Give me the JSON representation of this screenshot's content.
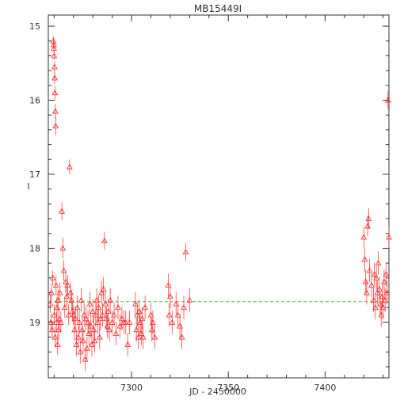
{
  "chart_data": {
    "type": "scatter",
    "title": "MB15449I",
    "xlabel": "JD - 2450000",
    "ylabel": "I",
    "xlim": [
      7257,
      7433
    ],
    "ylim": [
      19.75,
      14.85
    ],
    "y_inverted": true,
    "x_ticks": [
      7300,
      7350,
      7400
    ],
    "y_ticks": [
      15,
      16,
      17,
      18,
      19
    ],
    "marker": "triangle-open",
    "colors": {
      "points": "#ff2020",
      "errorbars": "#ff4040",
      "baseline": "#33cc33",
      "axes": "#333333"
    },
    "baseline": {
      "y": 18.72,
      "x_range": [
        7257,
        7433
      ],
      "style": "dashed"
    },
    "series": [
      {
        "points": [
          [
            7258.0,
            18.75,
            0.12
          ],
          [
            7258.3,
            19.0,
            0.12
          ],
          [
            7258.6,
            18.6,
            0.12
          ],
          [
            7259.0,
            19.1,
            0.12
          ],
          [
            7259.3,
            18.4,
            0.1
          ],
          [
            7259.6,
            15.2,
            0.06
          ],
          [
            7259.8,
            15.25,
            0.06
          ],
          [
            7259.9,
            15.3,
            0.06
          ],
          [
            7260.0,
            15.4,
            0.06
          ],
          [
            7260.2,
            15.55,
            0.07
          ],
          [
            7260.3,
            15.7,
            0.08
          ],
          [
            7260.4,
            15.9,
            0.09
          ],
          [
            7260.6,
            16.15,
            0.1
          ],
          [
            7260.8,
            16.35,
            0.12
          ],
          [
            7260.1,
            18.9,
            0.14
          ],
          [
            7260.5,
            19.2,
            0.14
          ],
          [
            7261.0,
            18.5,
            0.14
          ],
          [
            7261.2,
            19.0,
            0.14
          ],
          [
            7261.5,
            18.8,
            0.14
          ],
          [
            7261.8,
            19.3,
            0.14
          ],
          [
            7262.0,
            18.7,
            0.14
          ],
          [
            7262.3,
            19.1,
            0.14
          ],
          [
            7262.6,
            18.95,
            0.14
          ],
          [
            7263.0,
            18.6,
            0.14
          ],
          [
            7263.5,
            19.0,
            0.14
          ],
          [
            7264.0,
            17.5,
            0.12
          ],
          [
            7264.5,
            18.0,
            0.14
          ],
          [
            7265.0,
            18.3,
            0.14
          ],
          [
            7265.5,
            18.8,
            0.14
          ],
          [
            7266.0,
            18.45,
            0.14
          ],
          [
            7266.5,
            18.65,
            0.14
          ],
          [
            7267.0,
            18.5,
            0.14
          ],
          [
            7267.5,
            18.9,
            0.14
          ],
          [
            7268.0,
            16.9,
            0.1
          ],
          [
            7268.5,
            18.6,
            0.14
          ],
          [
            7269.0,
            18.7,
            0.14
          ],
          [
            7269.5,
            18.85,
            0.14
          ],
          [
            7270.0,
            18.9,
            0.14
          ],
          [
            7270.5,
            19.1,
            0.16
          ],
          [
            7271.0,
            18.95,
            0.16
          ],
          [
            7271.5,
            19.3,
            0.16
          ],
          [
            7272.0,
            18.8,
            0.16
          ],
          [
            7272.5,
            19.2,
            0.16
          ],
          [
            7273.0,
            19.0,
            0.16
          ],
          [
            7273.5,
            19.4,
            0.16
          ],
          [
            7274.0,
            18.7,
            0.16
          ],
          [
            7274.5,
            19.1,
            0.16
          ],
          [
            7275.0,
            19.25,
            0.16
          ],
          [
            7275.5,
            18.9,
            0.16
          ],
          [
            7276.0,
            19.5,
            0.16
          ],
          [
            7276.5,
            18.95,
            0.16
          ],
          [
            7277.0,
            19.35,
            0.16
          ],
          [
            7277.5,
            19.0,
            0.16
          ],
          [
            7278.0,
            19.15,
            0.16
          ],
          [
            7278.5,
            18.75,
            0.16
          ],
          [
            7279.0,
            19.05,
            0.16
          ],
          [
            7279.5,
            19.3,
            0.16
          ],
          [
            7280.0,
            18.85,
            0.16
          ],
          [
            7280.5,
            19.1,
            0.16
          ],
          [
            7281.0,
            19.25,
            0.16
          ],
          [
            7281.5,
            18.9,
            0.16
          ],
          [
            7282.0,
            18.7,
            0.16
          ],
          [
            7282.5,
            19.0,
            0.16
          ],
          [
            7283.0,
            18.8,
            0.16
          ],
          [
            7283.5,
            19.2,
            0.16
          ],
          [
            7284.0,
            18.95,
            0.16
          ],
          [
            7284.5,
            18.6,
            0.16
          ],
          [
            7285.0,
            18.9,
            0.16
          ],
          [
            7285.5,
            18.55,
            0.16
          ],
          [
            7286.0,
            17.9,
            0.12
          ],
          [
            7286.5,
            18.75,
            0.16
          ],
          [
            7287.0,
            18.95,
            0.16
          ],
          [
            7287.5,
            19.05,
            0.16
          ],
          [
            7288.0,
            18.85,
            0.16
          ],
          [
            7288.5,
            19.1,
            0.16
          ],
          [
            7289.0,
            18.7,
            0.16
          ],
          [
            7290.0,
            19.0,
            0.16
          ],
          [
            7291.0,
            18.9,
            0.16
          ],
          [
            7292.0,
            19.15,
            0.16
          ],
          [
            7293.0,
            18.8,
            0.16
          ],
          [
            7294.0,
            19.05,
            0.16
          ],
          [
            7295.0,
            18.95,
            0.16
          ],
          [
            7296.0,
            19.0,
            0.16
          ],
          [
            7297.0,
            19.0,
            0.16
          ],
          [
            7298.0,
            19.3,
            0.16
          ],
          [
            7299.0,
            19.0,
            0.16
          ],
          [
            7302.0,
            18.75,
            0.16
          ],
          [
            7302.5,
            19.1,
            0.16
          ],
          [
            7303.0,
            18.9,
            0.16
          ],
          [
            7303.5,
            19.2,
            0.16
          ],
          [
            7304.0,
            18.85,
            0.16
          ],
          [
            7304.5,
            19.0,
            0.16
          ],
          [
            7305.0,
            19.15,
            0.16
          ],
          [
            7305.5,
            18.95,
            0.16
          ],
          [
            7306.0,
            19.2,
            0.16
          ],
          [
            7307.0,
            18.8,
            0.16
          ],
          [
            7310.0,
            18.9,
            0.16
          ],
          [
            7310.5,
            19.1,
            0.16
          ],
          [
            7311.0,
            19.0,
            0.16
          ],
          [
            7312.0,
            19.2,
            0.16
          ],
          [
            7319.0,
            18.5,
            0.16
          ],
          [
            7319.5,
            18.9,
            0.16
          ],
          [
            7320.0,
            18.65,
            0.16
          ],
          [
            7321.0,
            19.0,
            0.16
          ],
          [
            7323.0,
            18.75,
            0.16
          ],
          [
            7324.0,
            18.9,
            0.16
          ],
          [
            7325.0,
            19.05,
            0.16
          ],
          [
            7326.0,
            19.2,
            0.16
          ],
          [
            7327.0,
            18.8,
            0.16
          ],
          [
            7328.0,
            18.05,
            0.12
          ],
          [
            7330.0,
            18.7,
            0.16
          ],
          [
            7420.0,
            17.85,
            0.14
          ],
          [
            7420.5,
            18.15,
            0.16
          ],
          [
            7421.0,
            18.45,
            0.16
          ],
          [
            7421.5,
            18.6,
            0.16
          ],
          [
            7422.0,
            17.7,
            0.14
          ],
          [
            7422.5,
            17.6,
            0.14
          ],
          [
            7423.0,
            18.3,
            0.16
          ],
          [
            7424.0,
            18.5,
            0.16
          ],
          [
            7425.0,
            18.7,
            0.16
          ],
          [
            7425.5,
            18.35,
            0.16
          ],
          [
            7426.0,
            18.8,
            0.16
          ],
          [
            7426.5,
            18.4,
            0.16
          ],
          [
            7427.0,
            18.6,
            0.16
          ],
          [
            7427.5,
            18.2,
            0.16
          ],
          [
            7428.0,
            18.55,
            0.16
          ],
          [
            7428.5,
            18.75,
            0.16
          ],
          [
            7429.0,
            18.9,
            0.16
          ],
          [
            7429.5,
            18.65,
            0.16
          ],
          [
            7430.0,
            18.8,
            0.16
          ],
          [
            7430.5,
            18.45,
            0.16
          ],
          [
            7431.0,
            18.7,
            0.16
          ],
          [
            7431.5,
            18.35,
            0.16
          ],
          [
            7432.0,
            18.6,
            0.16
          ],
          [
            7432.5,
            16.0,
            0.12
          ],
          [
            7433.0,
            17.85,
            0.14
          ]
        ]
      }
    ]
  }
}
